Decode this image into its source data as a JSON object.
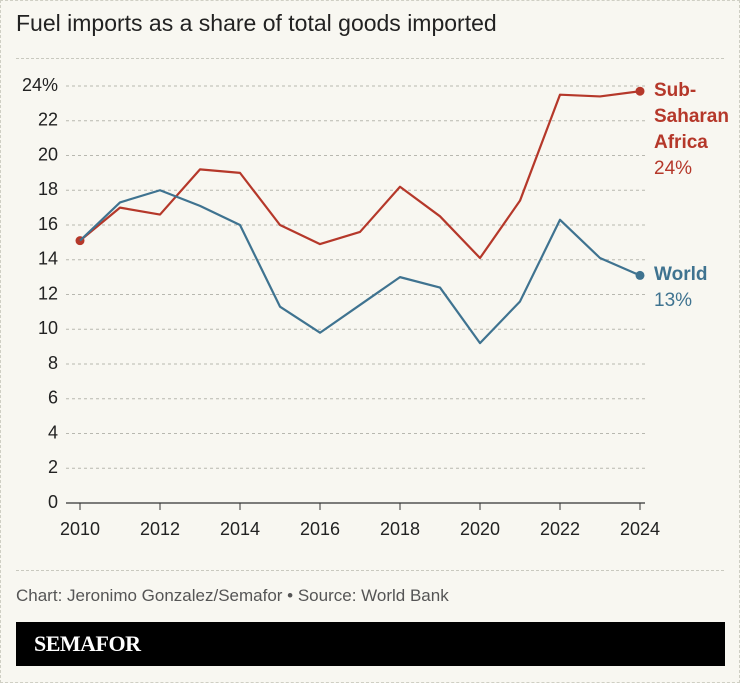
{
  "chart_data": {
    "type": "line",
    "title": "Fuel imports as a share of total goods imported",
    "x": [
      2010,
      2011,
      2012,
      2013,
      2014,
      2015,
      2016,
      2017,
      2018,
      2019,
      2020,
      2021,
      2022,
      2023,
      2024
    ],
    "xlim": [
      2010,
      2024
    ],
    "xticks": [
      2010,
      2012,
      2014,
      2016,
      2018,
      2020,
      2022,
      2024
    ],
    "ylim": [
      0,
      24
    ],
    "yticks": [
      0,
      2,
      4,
      6,
      8,
      10,
      12,
      14,
      16,
      18,
      20,
      22,
      {
        "value": 24,
        "label": "24%"
      }
    ],
    "grid": true,
    "series": [
      {
        "name": "Sub-Saharan Africa",
        "color": "#b5382a",
        "values": [
          15.1,
          17.0,
          16.6,
          19.2,
          19.0,
          16.0,
          14.9,
          15.6,
          18.2,
          16.5,
          14.1,
          17.4,
          23.5,
          23.4,
          23.7
        ],
        "value_labels": [
          null,
          null,
          null,
          null,
          null,
          null,
          null,
          null,
          null,
          null,
          null,
          null,
          null,
          null,
          "24%"
        ]
      },
      {
        "name": "World",
        "color": "#3f7390",
        "values": [
          15.1,
          17.3,
          18.0,
          17.1,
          16.0,
          11.3,
          9.8,
          11.4,
          13.0,
          12.4,
          9.2,
          11.6,
          16.3,
          14.1,
          13.1
        ],
        "value_labels": [
          null,
          null,
          null,
          null,
          null,
          null,
          null,
          null,
          null,
          null,
          null,
          null,
          null,
          null,
          "13%"
        ]
      }
    ],
    "source": "Chart: Jeronimo Gonzalez/Semafor • Source: World Bank",
    "brand": "SEMAFOR"
  }
}
